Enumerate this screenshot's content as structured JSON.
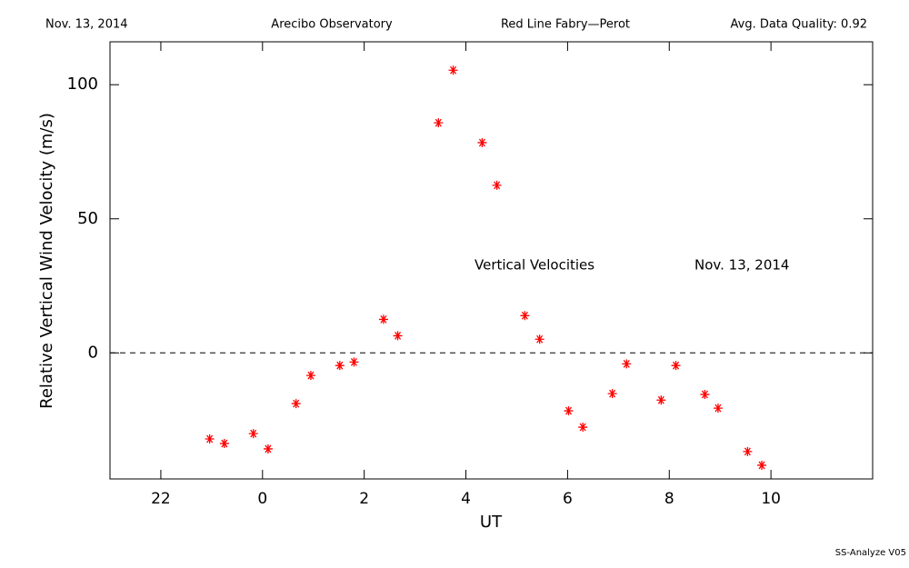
{
  "chart_data": {
    "type": "scatter",
    "header": [
      "Nov. 13, 2014",
      "Arecibo Observatory",
      "Red Line Fabry—Perot",
      "Avg. Data Quality: 0.92"
    ],
    "xlabel": "UT",
    "ylabel": "Relative Vertical Wind Velocity (m/s)",
    "annotations": [
      "Vertical Velocities",
      "Nov. 13, 2014"
    ],
    "footer": "SS-Analyze V05",
    "xlim": [
      -3,
      12
    ],
    "ylim": [
      -47,
      116
    ],
    "xticks": [
      {
        "value": -2,
        "label": "22"
      },
      0,
      2,
      4,
      6,
      8,
      10
    ],
    "yticks": [
      0,
      50,
      100
    ],
    "reference_line": 0,
    "series": [
      {
        "name": "Vertical Velocities",
        "color": "#ff0000",
        "x": [
          -1.04,
          -0.75,
          -0.18,
          0.11,
          0.66,
          0.95,
          1.52,
          1.8,
          2.38,
          2.66,
          3.46,
          3.75,
          4.32,
          4.61,
          5.16,
          5.45,
          6.02,
          6.3,
          6.88,
          7.16,
          7.84,
          8.13,
          8.7,
          8.96,
          9.54,
          9.82
        ],
        "values": [
          -32.1,
          -33.8,
          -30.1,
          -35.8,
          -18.9,
          -8.4,
          -4.7,
          -3.4,
          12.5,
          6.4,
          85.8,
          105.4,
          78.4,
          62.5,
          13.9,
          5.1,
          -21.6,
          -27.7,
          -15.2,
          -4.1,
          -17.6,
          -4.7,
          -15.5,
          -20.6,
          -36.8,
          -41.9
        ]
      }
    ]
  }
}
